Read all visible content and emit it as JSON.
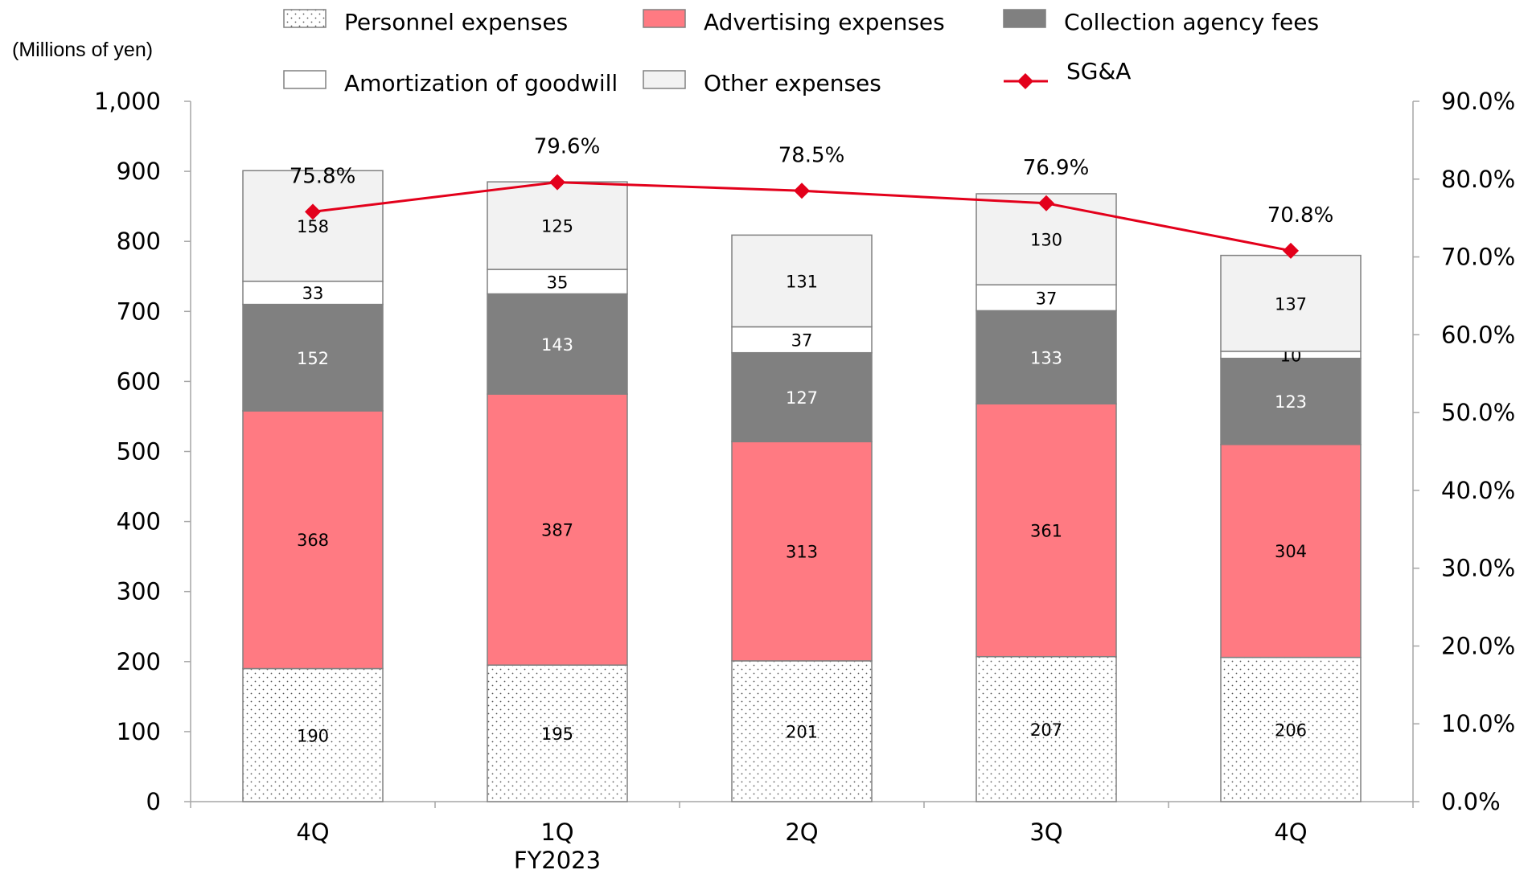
{
  "chart_data": {
    "type": "bar",
    "stacked": true,
    "unit_label": "(Millions of yen)",
    "categories": [
      "4Q",
      "1Q",
      "2Q",
      "3Q",
      "4Q"
    ],
    "category_sublabels": [
      "",
      "FY2023",
      "",
      "",
      ""
    ],
    "ylim": [
      0,
      1000
    ],
    "yticks": [
      "0",
      "100",
      "200",
      "300",
      "400",
      "500",
      "600",
      "700",
      "800",
      "900",
      "1,000"
    ],
    "y2lim": [
      0,
      90
    ],
    "y2ticks": [
      "0.0%",
      "10.0%",
      "20.0%",
      "30.0%",
      "40.0%",
      "50.0%",
      "60.0%",
      "70.0%",
      "80.0%",
      "90.0%"
    ],
    "series": [
      {
        "name": "Personnel expenses",
        "values": [
          190,
          195,
          201,
          207,
          206
        ],
        "color": "#ffffff",
        "pattern": "dots"
      },
      {
        "name": "Advertising expenses",
        "values": [
          368,
          387,
          313,
          361,
          304
        ],
        "color": "#ff7a82"
      },
      {
        "name": "Collection  agency fees",
        "values": [
          152,
          143,
          127,
          133,
          123
        ],
        "color": "#808080"
      },
      {
        "name": "Amortization of goodwill",
        "values": [
          33,
          35,
          37,
          37,
          10
        ],
        "color": "#ffffff"
      },
      {
        "name": "Other expenses",
        "values": [
          158,
          125,
          131,
          130,
          137
        ],
        "color": "#f2f2f2"
      }
    ],
    "line_series": {
      "name": "SG&A",
      "values": [
        75.8,
        79.6,
        78.5,
        76.9,
        70.8
      ],
      "labels": [
        "75.8%",
        "79.6%",
        "78.5%",
        "76.9%",
        "70.8%"
      ],
      "axis": "secondary",
      "color": "#e3001b"
    },
    "legend_position": "top",
    "grid": false
  }
}
